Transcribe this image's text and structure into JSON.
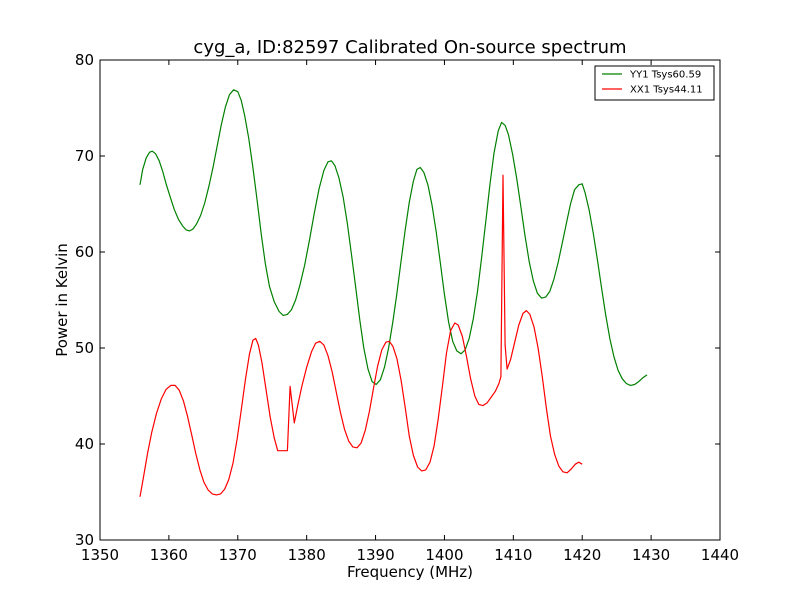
{
  "chart_data": {
    "type": "line",
    "title": "cyg_a, ID:82597 Calibrated On-source spectrum",
    "xlabel": "Frequency (MHz)",
    "ylabel": "Power in Kelvin",
    "xlim": [
      1350,
      1440
    ],
    "ylim": [
      30,
      80
    ],
    "xticks": [
      1350,
      1360,
      1370,
      1380,
      1390,
      1400,
      1410,
      1420,
      1430,
      1440
    ],
    "yticks": [
      30,
      40,
      50,
      60,
      70,
      80
    ],
    "grid": false,
    "legend_position": "top-right",
    "series": [
      {
        "name": "YY1 Tsys60.59",
        "color": "#008000",
        "points": [
          [
            1355.8,
            67.0
          ],
          [
            1356.2,
            68.6
          ],
          [
            1356.7,
            69.8
          ],
          [
            1357.2,
            70.4
          ],
          [
            1357.6,
            70.5
          ],
          [
            1358.1,
            70.2
          ],
          [
            1358.6,
            69.5
          ],
          [
            1359.1,
            68.4
          ],
          [
            1359.6,
            67.1
          ],
          [
            1360.2,
            65.7
          ],
          [
            1360.8,
            64.4
          ],
          [
            1361.4,
            63.4
          ],
          [
            1362.0,
            62.7
          ],
          [
            1362.5,
            62.3
          ],
          [
            1363.0,
            62.2
          ],
          [
            1363.5,
            62.4
          ],
          [
            1364.0,
            62.9
          ],
          [
            1364.6,
            63.8
          ],
          [
            1365.2,
            65.1
          ],
          [
            1365.8,
            66.8
          ],
          [
            1366.4,
            68.8
          ],
          [
            1367.0,
            71.0
          ],
          [
            1367.6,
            73.2
          ],
          [
            1368.2,
            75.1
          ],
          [
            1368.8,
            76.4
          ],
          [
            1369.4,
            76.9
          ],
          [
            1370.0,
            76.7
          ],
          [
            1370.5,
            75.8
          ],
          [
            1371.0,
            74.2
          ],
          [
            1371.6,
            71.8
          ],
          [
            1372.2,
            68.8
          ],
          [
            1372.8,
            65.4
          ],
          [
            1373.4,
            61.9
          ],
          [
            1374.0,
            58.8
          ],
          [
            1374.6,
            56.4
          ],
          [
            1375.3,
            54.8
          ],
          [
            1376.0,
            53.8
          ],
          [
            1376.6,
            53.4
          ],
          [
            1377.2,
            53.5
          ],
          [
            1377.8,
            54.0
          ],
          [
            1378.4,
            55.0
          ],
          [
            1379.0,
            56.5
          ],
          [
            1379.7,
            58.6
          ],
          [
            1380.4,
            61.2
          ],
          [
            1381.1,
            64.0
          ],
          [
            1381.8,
            66.6
          ],
          [
            1382.5,
            68.5
          ],
          [
            1383.1,
            69.4
          ],
          [
            1383.6,
            69.5
          ],
          [
            1384.1,
            69.0
          ],
          [
            1384.7,
            67.7
          ],
          [
            1385.3,
            65.7
          ],
          [
            1385.9,
            63.0
          ],
          [
            1386.5,
            59.8
          ],
          [
            1387.1,
            56.4
          ],
          [
            1387.7,
            53.0
          ],
          [
            1388.3,
            50.0
          ],
          [
            1388.9,
            47.8
          ],
          [
            1389.5,
            46.5
          ],
          [
            1390.1,
            46.2
          ],
          [
            1390.7,
            46.7
          ],
          [
            1391.3,
            48.0
          ],
          [
            1391.9,
            50.0
          ],
          [
            1392.5,
            52.7
          ],
          [
            1393.1,
            55.7
          ],
          [
            1393.7,
            59.0
          ],
          [
            1394.3,
            62.3
          ],
          [
            1394.9,
            65.2
          ],
          [
            1395.5,
            67.4
          ],
          [
            1396.0,
            68.6
          ],
          [
            1396.5,
            68.8
          ],
          [
            1397.0,
            68.3
          ],
          [
            1397.6,
            67.0
          ],
          [
            1398.2,
            64.9
          ],
          [
            1398.8,
            62.1
          ],
          [
            1399.4,
            58.9
          ],
          [
            1400.0,
            55.6
          ],
          [
            1400.6,
            52.7
          ],
          [
            1401.2,
            50.7
          ],
          [
            1401.8,
            49.7
          ],
          [
            1402.4,
            49.4
          ],
          [
            1403.0,
            49.8
          ],
          [
            1403.6,
            51.0
          ],
          [
            1404.2,
            53.1
          ],
          [
            1404.8,
            55.9
          ],
          [
            1405.4,
            59.4
          ],
          [
            1406.0,
            63.2
          ],
          [
            1406.6,
            67.0
          ],
          [
            1407.2,
            70.3
          ],
          [
            1407.8,
            72.6
          ],
          [
            1408.3,
            73.5
          ],
          [
            1408.8,
            73.2
          ],
          [
            1409.3,
            72.2
          ],
          [
            1409.9,
            70.2
          ],
          [
            1410.5,
            67.6
          ],
          [
            1411.1,
            64.7
          ],
          [
            1411.7,
            61.7
          ],
          [
            1412.3,
            59.0
          ],
          [
            1412.9,
            57.0
          ],
          [
            1413.5,
            55.7
          ],
          [
            1414.1,
            55.2
          ],
          [
            1414.7,
            55.3
          ],
          [
            1415.3,
            55.9
          ],
          [
            1415.9,
            57.2
          ],
          [
            1416.5,
            58.9
          ],
          [
            1417.1,
            60.9
          ],
          [
            1417.7,
            63.0
          ],
          [
            1418.3,
            65.0
          ],
          [
            1418.9,
            66.5
          ],
          [
            1419.5,
            67.0
          ],
          [
            1420.0,
            67.1
          ],
          [
            1420.4,
            66.2
          ],
          [
            1421.0,
            64.4
          ],
          [
            1421.6,
            62.0
          ],
          [
            1422.2,
            59.2
          ],
          [
            1422.8,
            56.3
          ],
          [
            1423.4,
            53.5
          ],
          [
            1424.0,
            51.0
          ],
          [
            1424.6,
            49.1
          ],
          [
            1425.2,
            47.7
          ],
          [
            1425.8,
            46.8
          ],
          [
            1426.4,
            46.3
          ],
          [
            1427.0,
            46.1
          ],
          [
            1427.6,
            46.2
          ],
          [
            1428.2,
            46.5
          ],
          [
            1428.8,
            46.9
          ],
          [
            1429.4,
            47.2
          ]
        ]
      },
      {
        "name": "XX1 Tsys44.11",
        "color": "#ff0000",
        "points": [
          [
            1355.8,
            34.5
          ],
          [
            1356.3,
            36.5
          ],
          [
            1356.9,
            39.0
          ],
          [
            1357.5,
            41.2
          ],
          [
            1358.2,
            43.2
          ],
          [
            1358.9,
            44.7
          ],
          [
            1359.6,
            45.7
          ],
          [
            1360.3,
            46.1
          ],
          [
            1360.9,
            46.1
          ],
          [
            1361.5,
            45.6
          ],
          [
            1362.1,
            44.5
          ],
          [
            1362.7,
            42.9
          ],
          [
            1363.3,
            41.0
          ],
          [
            1363.9,
            39.0
          ],
          [
            1364.5,
            37.3
          ],
          [
            1365.1,
            36.0
          ],
          [
            1365.7,
            35.2
          ],
          [
            1366.3,
            34.8
          ],
          [
            1366.9,
            34.7
          ],
          [
            1367.5,
            34.8
          ],
          [
            1368.1,
            35.3
          ],
          [
            1368.7,
            36.3
          ],
          [
            1369.3,
            38.0
          ],
          [
            1369.9,
            40.5
          ],
          [
            1370.5,
            43.5
          ],
          [
            1371.1,
            46.7
          ],
          [
            1371.7,
            49.4
          ],
          [
            1372.2,
            50.8
          ],
          [
            1372.6,
            51.0
          ],
          [
            1373.0,
            50.3
          ],
          [
            1373.5,
            48.5
          ],
          [
            1374.1,
            45.7
          ],
          [
            1374.7,
            42.8
          ],
          [
            1375.3,
            40.6
          ],
          [
            1375.8,
            39.3
          ],
          [
            1376.6,
            39.3
          ],
          [
            1377.2,
            39.3
          ],
          [
            1377.6,
            46.0
          ],
          [
            1378.2,
            42.2
          ],
          [
            1378.7,
            44.0
          ],
          [
            1379.3,
            46.0
          ],
          [
            1380.0,
            48.0
          ],
          [
            1380.7,
            49.6
          ],
          [
            1381.3,
            50.5
          ],
          [
            1381.9,
            50.7
          ],
          [
            1382.5,
            50.3
          ],
          [
            1383.1,
            49.2
          ],
          [
            1383.7,
            47.5
          ],
          [
            1384.3,
            45.4
          ],
          [
            1384.9,
            43.3
          ],
          [
            1385.5,
            41.5
          ],
          [
            1386.1,
            40.3
          ],
          [
            1386.7,
            39.7
          ],
          [
            1387.3,
            39.6
          ],
          [
            1387.9,
            40.1
          ],
          [
            1388.5,
            41.4
          ],
          [
            1389.1,
            43.4
          ],
          [
            1389.7,
            45.8
          ],
          [
            1390.3,
            48.1
          ],
          [
            1390.9,
            49.8
          ],
          [
            1391.5,
            50.6
          ],
          [
            1392.0,
            50.7
          ],
          [
            1392.5,
            50.2
          ],
          [
            1393.1,
            48.9
          ],
          [
            1393.7,
            46.7
          ],
          [
            1394.3,
            43.8
          ],
          [
            1394.9,
            40.8
          ],
          [
            1395.5,
            38.8
          ],
          [
            1396.1,
            37.6
          ],
          [
            1396.7,
            37.2
          ],
          [
            1397.3,
            37.3
          ],
          [
            1397.9,
            38.1
          ],
          [
            1398.5,
            39.8
          ],
          [
            1399.1,
            42.6
          ],
          [
            1399.7,
            46.0
          ],
          [
            1400.3,
            49.5
          ],
          [
            1400.9,
            51.8
          ],
          [
            1401.5,
            52.6
          ],
          [
            1402.0,
            52.4
          ],
          [
            1402.6,
            51.2
          ],
          [
            1403.2,
            49.1
          ],
          [
            1403.8,
            46.8
          ],
          [
            1404.4,
            45.0
          ],
          [
            1405.0,
            44.1
          ],
          [
            1405.6,
            44.0
          ],
          [
            1406.2,
            44.3
          ],
          [
            1406.8,
            44.9
          ],
          [
            1407.4,
            45.5
          ],
          [
            1407.9,
            46.3
          ],
          [
            1408.2,
            47.0
          ],
          [
            1408.5,
            68.0
          ],
          [
            1408.8,
            50.3
          ],
          [
            1409.1,
            47.8
          ],
          [
            1409.6,
            48.8
          ],
          [
            1410.2,
            50.6
          ],
          [
            1410.8,
            52.4
          ],
          [
            1411.4,
            53.6
          ],
          [
            1411.9,
            53.9
          ],
          [
            1412.4,
            53.5
          ],
          [
            1413.0,
            52.2
          ],
          [
            1413.6,
            50.0
          ],
          [
            1414.2,
            47.0
          ],
          [
            1414.8,
            43.7
          ],
          [
            1415.4,
            40.8
          ],
          [
            1416.0,
            38.9
          ],
          [
            1416.6,
            37.7
          ],
          [
            1417.2,
            37.1
          ],
          [
            1417.8,
            37.0
          ],
          [
            1418.4,
            37.4
          ],
          [
            1419.0,
            37.9
          ],
          [
            1419.5,
            38.1
          ],
          [
            1420.0,
            37.9
          ]
        ]
      }
    ]
  }
}
